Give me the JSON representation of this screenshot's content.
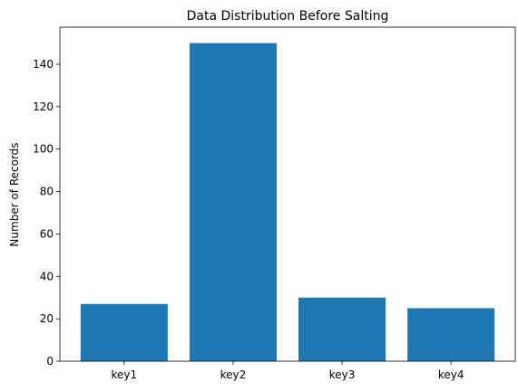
{
  "chart_data": {
    "type": "bar",
    "title": "Data Distribution Before Salting",
    "xlabel": "",
    "ylabel": "Number of Records",
    "categories": [
      "key1",
      "key2",
      "key3",
      "key4"
    ],
    "values": [
      27,
      150,
      30,
      25
    ],
    "ylim": [
      0,
      157.5
    ],
    "yticks": [
      0,
      20,
      40,
      60,
      80,
      100,
      120,
      140
    ],
    "bar_color": "#1f77b4",
    "grid": false,
    "legend": "none"
  }
}
